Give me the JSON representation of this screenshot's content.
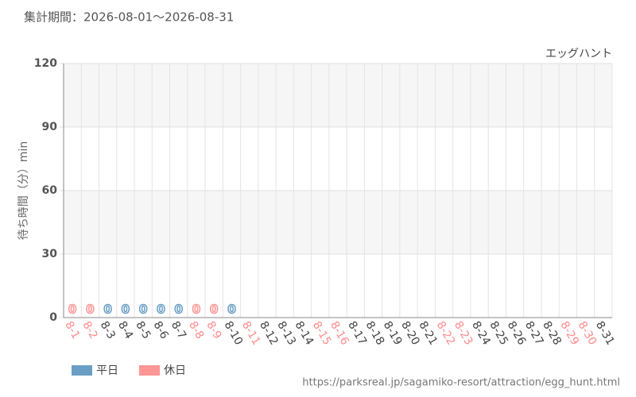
{
  "chart_data": {
    "type": "bar",
    "title": "集計期間：2026-08-01～2026-08-31",
    "subtitle": "エッグハント",
    "y_label": "待ち時間（分）min",
    "source": "https://parksreal.jp/sagamiko-resort/attraction/egg_hunt.html",
    "categories": [
      "8-1",
      "8-2",
      "8-3",
      "8-4",
      "8-5",
      "8-6",
      "8-7",
      "8-8",
      "8-9",
      "8-10",
      "8-11",
      "8-12",
      "8-13",
      "8-14",
      "8-15",
      "8-16",
      "8-17",
      "8-18",
      "8-19",
      "8-20",
      "8-21",
      "8-22",
      "8-23",
      "8-24",
      "8-25",
      "8-26",
      "8-27",
      "8-28",
      "8-29",
      "8-30",
      "8-31"
    ],
    "category_colors": [
      "#ff8c8c",
      "#ff8c8c",
      "#444",
      "#444",
      "#444",
      "#444",
      "#444",
      "#ff8c8c",
      "#ff8c8c",
      "#444",
      "#ff8c8c",
      "#444",
      "#444",
      "#444",
      "#ff8c8c",
      "#ff8c8c",
      "#444",
      "#444",
      "#444",
      "#444",
      "#444",
      "#ff8c8c",
      "#ff8c8c",
      "#444",
      "#444",
      "#444",
      "#444",
      "#444",
      "#ff8c8c",
      "#ff8c8c",
      "#444"
    ],
    "series": [
      {
        "name": "平日",
        "color": "#6a9ec5",
        "values": [
          null,
          null,
          0,
          0,
          0,
          0,
          0,
          null,
          null,
          0,
          null,
          null,
          null,
          null,
          null,
          null,
          null,
          null,
          null,
          null,
          null,
          null,
          null,
          null,
          null,
          null,
          null,
          null,
          null,
          null,
          null
        ]
      },
      {
        "name": "休日",
        "color": "#ff9696",
        "values": [
          0,
          0,
          null,
          null,
          null,
          null,
          null,
          0,
          0,
          null,
          null,
          null,
          null,
          null,
          null,
          null,
          null,
          null,
          null,
          null,
          null,
          null,
          null,
          null,
          null,
          null,
          null,
          null,
          null,
          null,
          null
        ]
      }
    ],
    "ylim": [
      0,
      120
    ],
    "yticks": [
      0,
      30,
      60,
      90,
      120
    ],
    "grid": true
  }
}
